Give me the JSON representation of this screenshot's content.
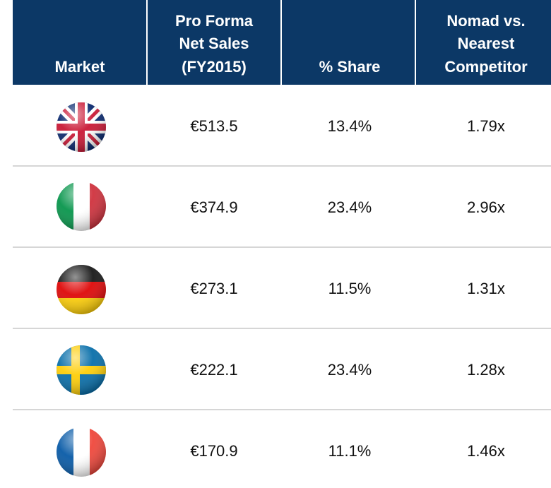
{
  "table": {
    "header": [
      [
        "Market"
      ],
      [
        "Pro Forma",
        "Net Sales",
        "(FY2015)"
      ],
      [
        "% Share"
      ],
      [
        "Nomad vs.",
        "Nearest",
        "Competitor"
      ]
    ],
    "rows": [
      [
        "€513.5",
        "13.4%",
        "1.79x"
      ],
      [
        "€374.9",
        "23.4%",
        "2.96x"
      ],
      [
        "€273.1",
        "11.5%",
        "1.31x"
      ],
      [
        "€222.1",
        "23.4%",
        "1.28x"
      ],
      [
        "€170.9",
        "11.1%",
        "1.46x"
      ]
    ]
  }
}
